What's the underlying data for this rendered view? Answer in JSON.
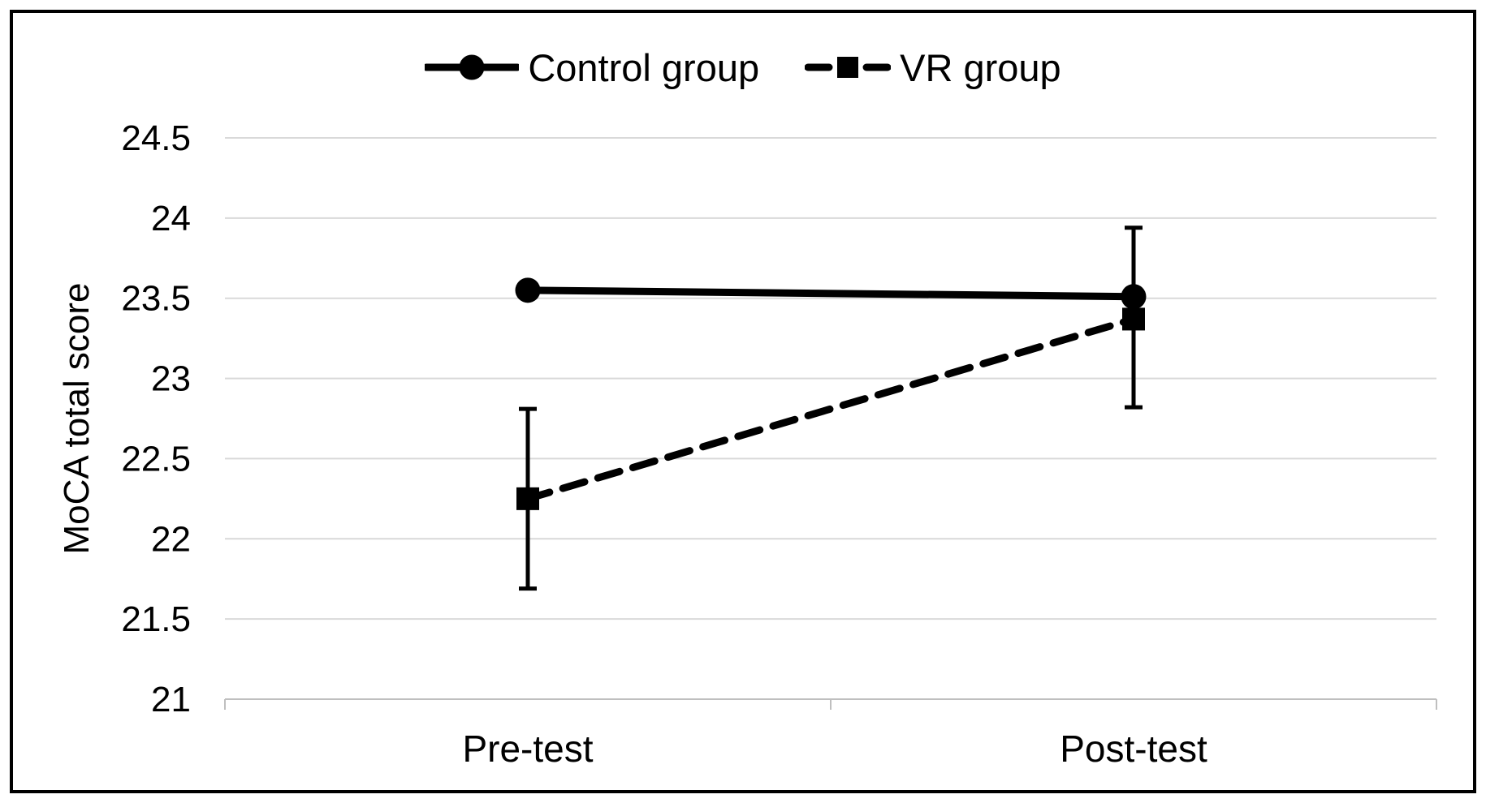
{
  "chart_data": {
    "type": "line",
    "title": "",
    "categories": [
      "Pre-test",
      "Post-test"
    ],
    "series": [
      {
        "name": "Control group",
        "values": [
          23.55,
          23.51
        ],
        "marker": "circle",
        "line_style": "solid",
        "color": "#000000"
      },
      {
        "name": "VR group",
        "values": [
          22.25,
          23.37
        ],
        "marker": "square",
        "line_style": "dashed",
        "color": "#000000",
        "error_bars": [
          {
            "lower": 21.69,
            "upper": 22.81
          },
          {
            "lower": 22.82,
            "upper": 23.94
          }
        ]
      }
    ],
    "xlabel": "",
    "ylabel": "MoCA total score",
    "ylim": [
      21,
      24.5
    ],
    "yticks": [
      21,
      21.5,
      22,
      22.5,
      23,
      23.5,
      24,
      24.5
    ],
    "ytick_labels": [
      "21",
      "21.5",
      "22",
      "22.5",
      "23",
      "23.5",
      "24",
      "24.5"
    ],
    "grid": "horizontal",
    "legend_position": "top",
    "colors": {
      "grid": "#d9d9d9",
      "axis": "#bfbfbf",
      "series": "#000000",
      "text": "#000000",
      "background": "#ffffff",
      "frame_border": "#000000"
    }
  }
}
